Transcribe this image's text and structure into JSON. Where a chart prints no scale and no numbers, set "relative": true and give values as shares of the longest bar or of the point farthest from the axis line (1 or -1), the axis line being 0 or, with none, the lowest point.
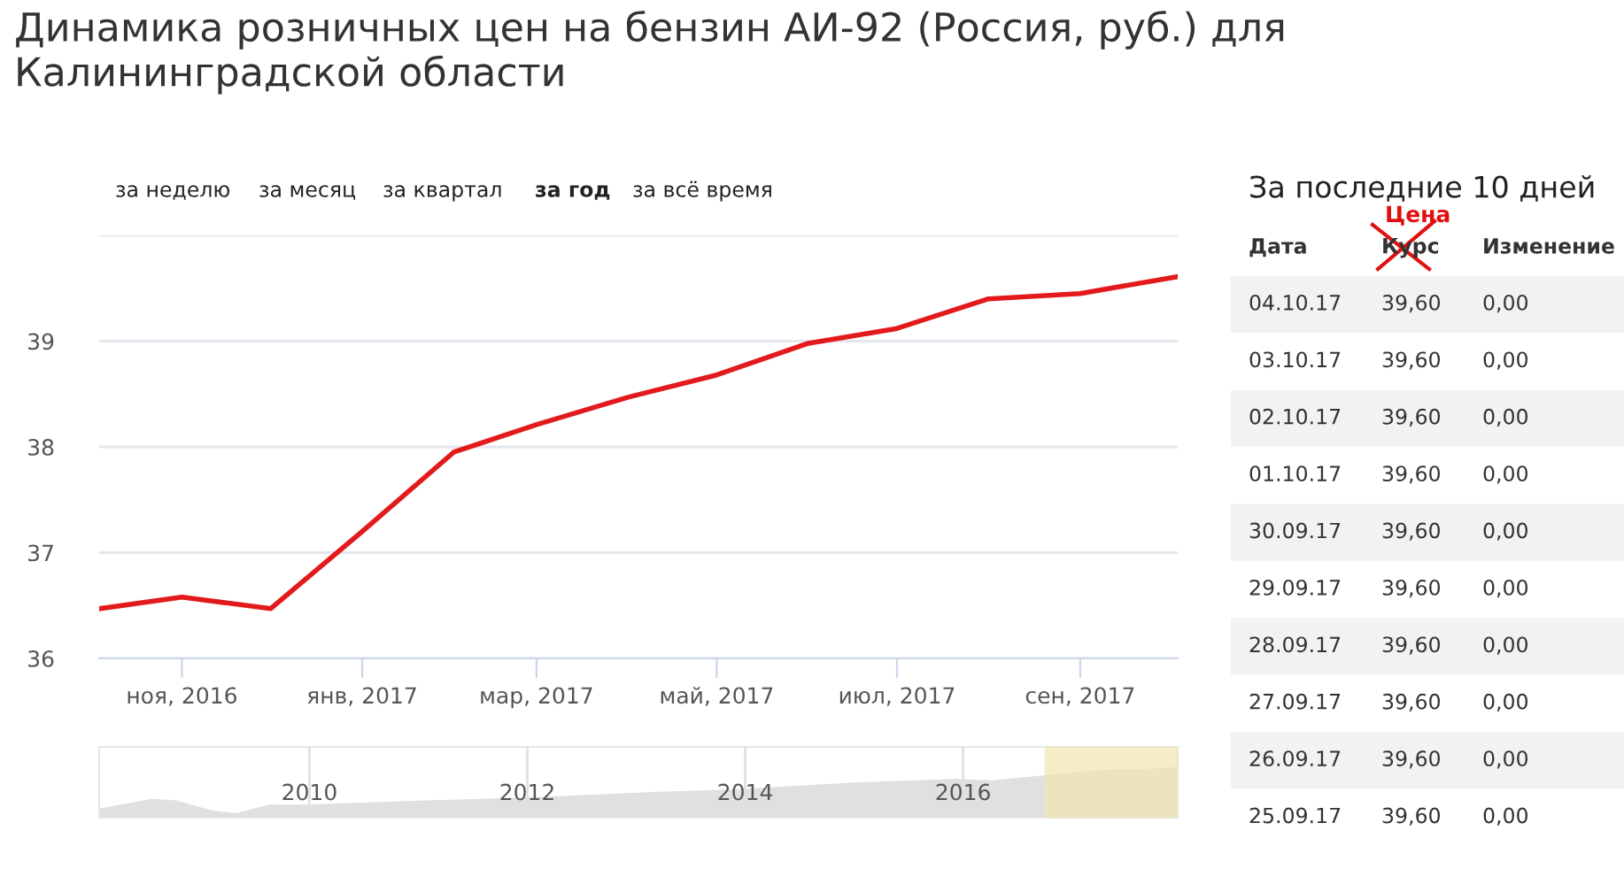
{
  "chart_data": [
    {
      "type": "line",
      "title": "Динамика розничных цен на бензин АИ-92 (Россия, руб.) для Калининградской области",
      "x": [
        "2016-10-04",
        "2016-11-01",
        "2016-12-01",
        "2017-01-01",
        "2017-02-01",
        "2017-03-01",
        "2017-04-01",
        "2017-05-01",
        "2017-06-01",
        "2017-07-01",
        "2017-08-01",
        "2017-09-01",
        "2017-10-04"
      ],
      "series": [
        {
          "color": "#e31a1c",
          "values": [
            36.47,
            36.58,
            36.47,
            37.2,
            37.95,
            38.21,
            38.47,
            38.68,
            38.98,
            39.12,
            39.4,
            39.45,
            39.61
          ]
        }
      ],
      "xlim": [
        "2016-10-04",
        "2017-10-04"
      ],
      "xticks": [
        {
          "value": "2016-11-01",
          "label": "ноя, 2016"
        },
        {
          "value": "2017-01-01",
          "label": "янв, 2017"
        },
        {
          "value": "2017-03-01",
          "label": "мар, 2017"
        },
        {
          "value": "2017-05-01",
          "label": "май, 2017"
        },
        {
          "value": "2017-07-01",
          "label": "июл, 2017"
        },
        {
          "value": "2017-09-01",
          "label": "сен, 2017"
        }
      ],
      "ylim": [
        36,
        40
      ],
      "yticks": [
        36,
        37,
        38,
        39,
        {
          "value": 40,
          "label": null
        }
      ],
      "grid": "y",
      "marker": "none",
      "line_style": "solid",
      "annotations": [
        "за неделю",
        "за месяц",
        "за квартал",
        "за год",
        "за всё время"
      ]
    },
    {
      "type": "area",
      "relative": true,
      "x": [
        2008.07,
        2008.55,
        2008.78,
        2009.11,
        2009.33,
        2009.63,
        2009.95,
        2011.06,
        2011.97,
        2013.2,
        2013.98,
        2014.96,
        2015.93,
        2016.26,
        2016.72,
        2017.24,
        2017.76,
        2017.97
      ],
      "series": [
        {
          "color": "#e0e0e0",
          "values": [
            0.18,
            0.37,
            0.34,
            0.14,
            0.09,
            0.26,
            0.26,
            0.34,
            0.4,
            0.51,
            0.57,
            0.69,
            0.77,
            0.74,
            0.83,
            0.94,
            0.97,
            1.0
          ]
        }
      ],
      "xlim": [
        2008.07,
        2017.97
      ],
      "xticks": [
        2010,
        2012,
        2014,
        2016
      ],
      "grid": "x",
      "bands": [
        {
          "axis": "x",
          "from": 2016.76,
          "to": 2017.97,
          "color": "#f3e6b0"
        }
      ]
    },
    {
      "type": "other",
      "title": "За последние 10 дней",
      "subtitle": "Цена",
      "categories": [
        "Дата",
        "Курс",
        "Изменение"
      ],
      "annotations": [
        "04.10.17",
        "39,60",
        "0,00",
        "03.10.17",
        "39,60",
        "0,00",
        "02.10.17",
        "39,60",
        "0,00",
        "01.10.17",
        "39,60",
        "0,00",
        "30.09.17",
        "39,60",
        "0,00",
        "29.09.17",
        "39,60",
        "0,00",
        "28.09.17",
        "39,60",
        "0,00",
        "27.09.17",
        "39,60",
        "0,00",
        "26.09.17",
        "39,60",
        "0,00",
        "25.09.17",
        "39,60",
        "0,00"
      ]
    }
  ]
}
